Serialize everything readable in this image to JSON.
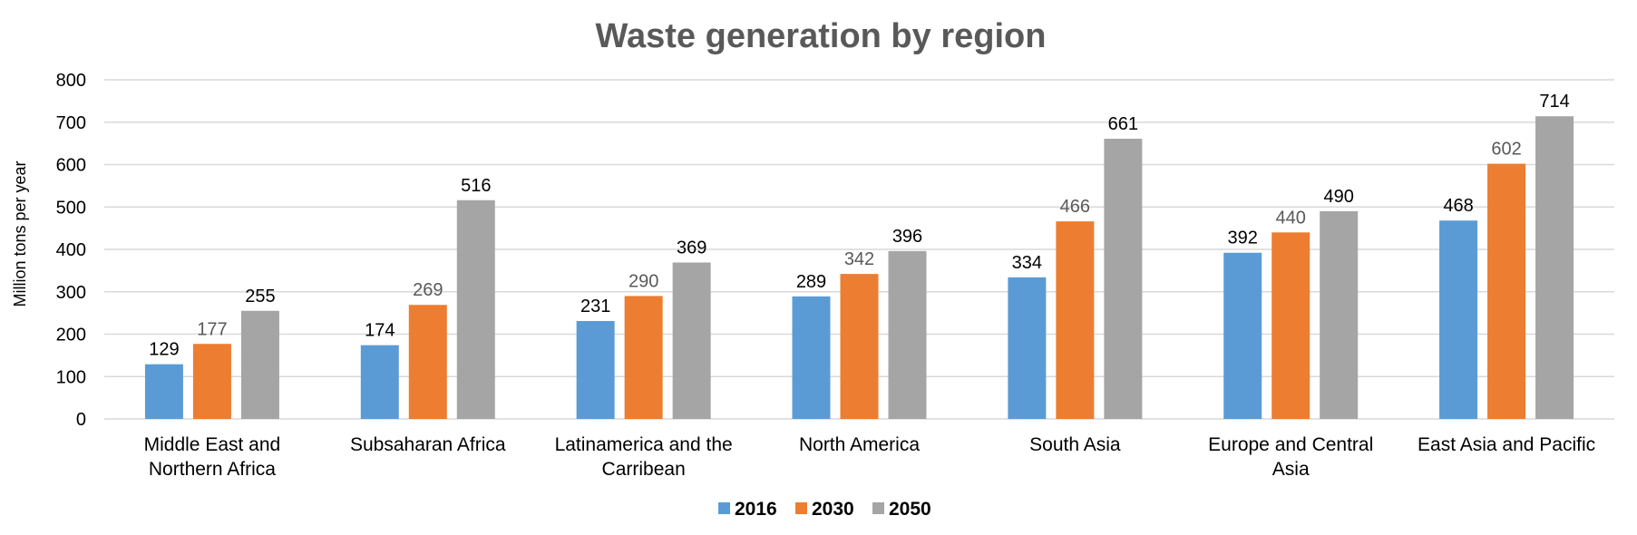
{
  "chart_data": {
    "type": "bar",
    "title": "Waste generation by region",
    "xlabel": "",
    "ylabel": "Million tons per year",
    "ylim": [
      0,
      800
    ],
    "yticks": [
      0,
      100,
      200,
      300,
      400,
      500,
      600,
      700,
      800
    ],
    "grid": true,
    "legend_position": "bottom",
    "categories": [
      "Middle East and Northern Africa",
      "Subsaharan Africa",
      "Latinamerica and the Carribean",
      "North America",
      "South Asia",
      "Europe and Central Asia",
      "East Asia and Pacific"
    ],
    "category_lines": [
      [
        "Middle East and",
        "Northern Africa"
      ],
      [
        "Subsaharan Africa"
      ],
      [
        "Latinamerica and the",
        "Carribean"
      ],
      [
        "North America"
      ],
      [
        "South Asia"
      ],
      [
        "Europe and Central",
        "Asia"
      ],
      [
        "East Asia and Pacific"
      ]
    ],
    "series": [
      {
        "name": "2016",
        "color": "#5B9BD5",
        "label_color": "#000000",
        "values": [
          129,
          174,
          231,
          289,
          334,
          392,
          468
        ]
      },
      {
        "name": "2030",
        "color": "#ED7D31",
        "label_color": "#595959",
        "values": [
          177,
          269,
          290,
          342,
          466,
          440,
          602
        ]
      },
      {
        "name": "2050",
        "color": "#A5A5A5",
        "label_color": "#000000",
        "values": [
          255,
          516,
          369,
          396,
          661,
          490,
          714
        ]
      }
    ],
    "colors": {
      "gridline": "#D9D9D9",
      "title": "#595959"
    }
  }
}
